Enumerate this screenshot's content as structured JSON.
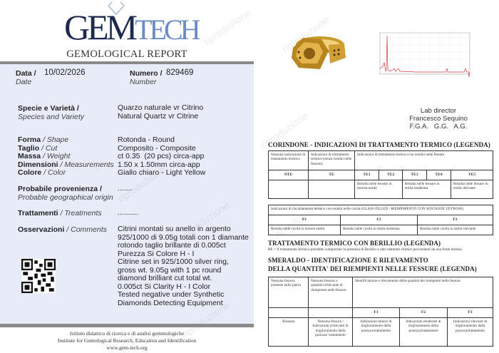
{
  "header": {
    "logo_main": "GEM",
    "logo_accent": "TECH",
    "subtitle": "GEMOLOGICAL REPORT"
  },
  "watermark": "riproduzione",
  "report": {
    "date_label": "Data /",
    "date_label_en": "Date",
    "date": "10/02/2026",
    "number_label": "Numero /",
    "number_label_en": "Number",
    "number": "829469",
    "fields": [
      {
        "label": "Specie e Varietà /",
        "label_en": "Species and Variety",
        "value": "Quarzo naturale vr Citrino\nNatural Quartz vr Citrine"
      },
      {
        "label": "Forma",
        "label_en": "/ Shape",
        "value": "Rotonda - Round"
      },
      {
        "label": "Taglio",
        "label_en": "/ Cut",
        "value": "Composito - Composite"
      },
      {
        "label": "Massa",
        "label_en": "/ Weight",
        "value": "ct 0.35  (20 pcs) circa-app"
      },
      {
        "label": "Dimensioni",
        "label_en": "/ Measurements",
        "value": "1.50 x 1.50mm circa-app"
      },
      {
        "label": "Colore",
        "label_en": "/ Color",
        "value": "Giallo chiaro - Light Yellow"
      },
      {
        "label": "Probabile provenienza /",
        "label_en": "Probable geographical origin",
        "value": "......."
      },
      {
        "label": "Trattamenti",
        "label_en": "/ Treatments",
        "value": ".........."
      },
      {
        "label": "Osservazioni",
        "label_en": "/ Comments",
        "value": "Citrini montati su anello in argento\n925/1000 di 9.05g totali con 1 diamante\nrotondo taglio brillante di 0.005ct\nPurezza Si   Colore H - I\nCitrine set in 925/1000 silver ring,\ngross wt. 9.05g with 1 pc round\ndiamond brilliant cut total wt.\n0.005ct  Si  Clarity   H - I Color\nTested negative under Synthetic\nDiamonds Detecting Equipment"
      }
    ]
  },
  "footer": {
    "line1": "Istituto didattico di ricerca e di analisi gemmologiche",
    "line2": "Institute for Gemological Research, Education and Identification",
    "line3": "www.gem-tech.org"
  },
  "director": {
    "title": "Lab director",
    "name": "Francesco Sequino",
    "credentials": "F.G.A.   G.G.   A.G."
  },
  "corindone": {
    "title": "CORINDONE - INDICAZIONI DI TRATTAMENTO TERMICO (LEGENDA)",
    "h1": "Nessuna indicazione di trattamento termico",
    "h2": "Indicazioni di trattamento termico (senza residui nelle fessure)",
    "h3": "Indicazioni di trattamento termico con residui nelle fessure",
    "codes": [
      "NTE",
      "TE",
      "TE1",
      "TE2",
      "TE3",
      "TE4",
      "TE5"
    ],
    "d1": "Residui nelle fessure in minore entità",
    "d2": "Residui nelle fessure in entità moderata",
    "d3": "Residui nelle fessure in entità rilevante"
  },
  "glass": {
    "header": "Indicazioni di riscaldamento termico con residui nelle cavità (GLASS FILLED - RIEMPIMENTO CON SOSTANZE VETROSE)",
    "codes": [
      "F1",
      "F2",
      "F3"
    ],
    "desc": [
      "Residui nelle cavità in minore entità",
      "Residui nelle cavità in entità moderata",
      "Residui nelle cavità in entità rilevante"
    ]
  },
  "berillio": {
    "title": "TRATTAMENTO TERMICO CON BERILLIO (LEGENDA)",
    "text": "BE = Il trattamento termico potrebbe comportare la presenza di Berillio o altri elementi chimici provenienti da una fonte esterna."
  },
  "smeraldo": {
    "title1": "SMERALDO - IDENTIFICAZIONE E RILEVAMENTO",
    "title2": "DELLA QUANTITA' DEI RIEMPIENTI NELLE FESSURE (LEGENDA)",
    "h1": "Nessuna fessura presente nella pietra",
    "h2": "Nessuna fessura o quantità irrilevante di riempiente nelle fessure",
    "h3": "Identificazione e rilevamento della quantità dei riempienti nelle fessure",
    "codes": [
      "F1",
      "F2",
      "F3"
    ],
    "row": [
      "Nessuna",
      "Nessuna fessura / Indicazioni irrilevanti di miglioramento della purezza/ trattamento",
      "Indicazioni minori di miglioramento della purezza/trattamento",
      "Indicazioni moderate di miglioramento della purezza/trattamento",
      "Indicazioni rilevanti di miglioramento della purezza/trattamento"
    ]
  },
  "colors": {
    "panel": "#e8ecf8",
    "logo_dark": "#1d2a4f",
    "logo_light": "#6a8bc6",
    "bar": "#8a8a8a",
    "spectrum": "#d04040"
  }
}
